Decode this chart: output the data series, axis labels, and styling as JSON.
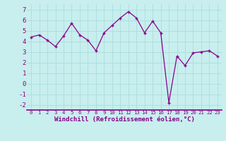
{
  "x": [
    0,
    1,
    2,
    3,
    4,
    5,
    6,
    7,
    8,
    9,
    10,
    11,
    12,
    13,
    14,
    15,
    16,
    17,
    18,
    19,
    20,
    21,
    22,
    23
  ],
  "y": [
    4.4,
    4.6,
    4.1,
    3.5,
    4.5,
    5.7,
    4.6,
    4.1,
    3.1,
    4.8,
    5.5,
    6.2,
    6.8,
    6.2,
    4.8,
    5.9,
    4.8,
    -1.8,
    2.6,
    1.7,
    2.9,
    3.0,
    3.1,
    2.6
  ],
  "line_color": "#880088",
  "marker": "+",
  "marker_size": 3.5,
  "linewidth": 0.9,
  "xlabel": "Windchill (Refroidissement éolien,°C)",
  "xlabel_fontsize": 6.5,
  "xlim": [
    -0.5,
    23.5
  ],
  "ylim": [
    -2.5,
    7.5
  ],
  "yticks": [
    -2,
    -1,
    0,
    1,
    2,
    3,
    4,
    5,
    6,
    7
  ],
  "xticks": [
    0,
    1,
    2,
    3,
    4,
    5,
    6,
    7,
    8,
    9,
    10,
    11,
    12,
    13,
    14,
    15,
    16,
    17,
    18,
    19,
    20,
    21,
    22,
    23
  ],
  "xtick_fontsize": 5.2,
  "ytick_fontsize": 6.5,
  "background_color": "#c8eeee",
  "grid_color": "#aadddd",
  "grid_linewidth": 0.6,
  "spine_color": "#880088",
  "xlabel_color": "#880088",
  "tick_color": "#880088"
}
